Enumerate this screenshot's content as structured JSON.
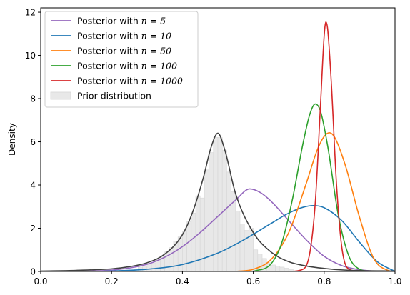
{
  "chart_data": {
    "type": "line",
    "title": "",
    "xlabel": "",
    "ylabel": "Density",
    "xlim": [
      0.0,
      1.0
    ],
    "ylim": [
      0,
      12.2
    ],
    "xticks": [
      "0.0",
      "0.2",
      "0.4",
      "0.6",
      "0.8",
      "1.0"
    ],
    "yticks": [
      "0",
      "2",
      "4",
      "6",
      "8",
      "10",
      "12"
    ],
    "xtick_values": [
      0.0,
      0.2,
      0.4,
      0.6,
      0.8,
      1.0
    ],
    "ytick_values": [
      0,
      2,
      4,
      6,
      8,
      10,
      12
    ],
    "grid": false,
    "legend_position": "top-left",
    "series": [
      {
        "name": "Posterior with n = 5",
        "legend_prefix": "Posterior with ",
        "legend_math": "n = 5",
        "color": "#9467bd",
        "x": [
          0.0,
          0.1,
          0.2,
          0.3,
          0.35,
          0.4,
          0.45,
          0.5,
          0.55,
          0.59,
          0.62,
          0.65,
          0.7,
          0.75,
          0.8,
          0.85,
          0.9,
          0.95,
          1.0
        ],
        "y": [
          0.0,
          0.01,
          0.06,
          0.33,
          0.66,
          1.15,
          1.8,
          2.55,
          3.3,
          3.82,
          3.65,
          3.25,
          2.35,
          1.45,
          0.7,
          0.27,
          0.08,
          0.01,
          0.0
        ]
      },
      {
        "name": "Posterior with n = 10",
        "legend_prefix": "Posterior with ",
        "legend_math": "n = 10",
        "color": "#1f77b4",
        "x": [
          0.0,
          0.1,
          0.2,
          0.3,
          0.4,
          0.5,
          0.55,
          0.6,
          0.65,
          0.7,
          0.74,
          0.77,
          0.8,
          0.85,
          0.9,
          0.95,
          1.0
        ],
        "y": [
          0.0,
          0.0,
          0.02,
          0.1,
          0.32,
          0.85,
          1.25,
          1.72,
          2.22,
          2.7,
          2.97,
          3.05,
          2.95,
          2.35,
          1.35,
          0.45,
          0.0
        ]
      },
      {
        "name": "Posterior with n = 50",
        "legend_prefix": "Posterior with ",
        "legend_math": "n = 50",
        "color": "#ff7f0e",
        "x": [
          0.55,
          0.6,
          0.65,
          0.7,
          0.75,
          0.78,
          0.8,
          0.815,
          0.83,
          0.86,
          0.9,
          0.94,
          0.98,
          1.0
        ],
        "y": [
          0.0,
          0.1,
          0.55,
          1.8,
          4.1,
          5.6,
          6.25,
          6.42,
          6.2,
          4.9,
          2.5,
          0.6,
          0.05,
          0.0
        ]
      },
      {
        "name": "Posterior with n = 100",
        "legend_prefix": "Posterior with ",
        "legend_math": "n = 100",
        "color": "#2ca02c",
        "x": [
          0.6,
          0.65,
          0.68,
          0.71,
          0.74,
          0.76,
          0.775,
          0.79,
          0.81,
          0.84,
          0.87,
          0.9,
          0.93
        ],
        "y": [
          0.0,
          0.35,
          1.3,
          3.3,
          5.9,
          7.3,
          7.75,
          7.4,
          5.8,
          2.6,
          0.7,
          0.1,
          0.0
        ]
      },
      {
        "name": "Posterior with n = 1000",
        "legend_prefix": "Posterior with ",
        "legend_math": "n = 1000",
        "color": "#d62728",
        "x": [
          0.7,
          0.74,
          0.76,
          0.775,
          0.79,
          0.8,
          0.805,
          0.81,
          0.82,
          0.835,
          0.85,
          0.87,
          0.9
        ],
        "y": [
          0.0,
          0.1,
          0.9,
          3.2,
          7.8,
          10.9,
          11.55,
          11.2,
          8.8,
          4.0,
          1.1,
          0.1,
          0.0
        ]
      },
      {
        "name": "",
        "legend_prefix": "",
        "legend_math": "",
        "color": "#404040",
        "x": [
          0.0,
          0.1,
          0.2,
          0.25,
          0.3,
          0.35,
          0.4,
          0.43,
          0.46,
          0.48,
          0.5,
          0.52,
          0.55,
          0.6,
          0.65,
          0.7,
          0.75,
          0.8,
          0.85,
          0.9,
          1.0
        ],
        "y": [
          0.02,
          0.05,
          0.12,
          0.22,
          0.4,
          0.8,
          1.7,
          2.8,
          4.4,
          5.7,
          6.4,
          5.6,
          3.6,
          1.8,
          0.9,
          0.45,
          0.25,
          0.14,
          0.07,
          0.04,
          0.02
        ]
      }
    ],
    "histogram": {
      "name": "Prior distribution",
      "color": "#e8e8e8",
      "edge_color": "#d6d6d6",
      "bin_width": 0.0125,
      "bin_starts": [
        0.2625,
        0.275,
        0.2875,
        0.3,
        0.3125,
        0.325,
        0.3375,
        0.35,
        0.3625,
        0.375,
        0.3875,
        0.4,
        0.4125,
        0.425,
        0.4375,
        0.45,
        0.4625,
        0.475,
        0.4875,
        0.5,
        0.5125,
        0.525,
        0.5375,
        0.55,
        0.5625,
        0.575,
        0.5875,
        0.6,
        0.6125,
        0.625,
        0.6375,
        0.65,
        0.6625,
        0.675,
        0.6875,
        0.7
      ],
      "heights": [
        0.1,
        0.2,
        0.25,
        0.35,
        0.4,
        0.55,
        0.7,
        0.9,
        1.1,
        1.4,
        1.6,
        1.85,
        2.3,
        2.7,
        3.5,
        3.4,
        4.7,
        5.5,
        6.2,
        6.2,
        5.6,
        4.6,
        3.7,
        2.8,
        2.2,
        1.9,
        2.0,
        1.0,
        0.8,
        0.6,
        0.4,
        0.3,
        0.25,
        0.2,
        0.15,
        0.1
      ]
    }
  }
}
